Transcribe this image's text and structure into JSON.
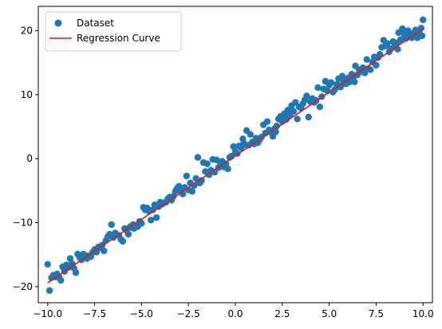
{
  "chart_data": {
    "type": "scatter",
    "title": "",
    "xlabel": "",
    "ylabel": "",
    "xlim": [
      -10.5,
      10.5
    ],
    "ylim": [
      -22.5,
      23.8
    ],
    "xticks": [
      -10.0,
      -7.5,
      -5.0,
      -2.5,
      0.0,
      2.5,
      5.0,
      7.5,
      10.0
    ],
    "xtick_labels": [
      "−10.0",
      "−7.5",
      "−5.0",
      "−2.5",
      "0.0",
      "2.5",
      "5.0",
      "7.5",
      "10.0"
    ],
    "yticks": [
      -20,
      -10,
      0,
      10,
      20
    ],
    "ytick_labels": [
      "−20",
      "−10",
      "0",
      "10",
      "20"
    ],
    "grid": false,
    "legend": {
      "placement": "top-left",
      "entries": [
        "Dataset",
        "Regression Curve"
      ]
    },
    "series": [
      {
        "name": "Dataset",
        "kind": "scatter",
        "color": "#1f77b4",
        "points": [
          [
            -10.0,
            -16.5
          ],
          [
            -9.9,
            -20.6
          ],
          [
            -9.8,
            -18.6
          ],
          [
            -9.7,
            -18.2
          ],
          [
            -9.6,
            -18.3
          ],
          [
            -9.5,
            -18.0
          ],
          [
            -9.4,
            -18.4
          ],
          [
            -9.3,
            -19.0
          ],
          [
            -9.2,
            -16.9
          ],
          [
            -9.1,
            -17.6
          ],
          [
            -9.0,
            -16.6
          ],
          [
            -8.9,
            -17.0
          ],
          [
            -8.8,
            -15.6
          ],
          [
            -8.7,
            -16.4
          ],
          [
            -8.6,
            -17.1
          ],
          [
            -8.5,
            -17.8
          ],
          [
            -8.4,
            -14.9
          ],
          [
            -8.3,
            -15.4
          ],
          [
            -8.2,
            -15.8
          ],
          [
            -8.1,
            -14.9
          ],
          [
            -8.0,
            -15.1
          ],
          [
            -7.9,
            -15.6
          ],
          [
            -7.8,
            -15.2
          ],
          [
            -7.7,
            -15.3
          ],
          [
            -7.6,
            -14.6
          ],
          [
            -7.5,
            -14.2
          ],
          [
            -7.4,
            -14.6
          ],
          [
            -7.3,
            -13.8
          ],
          [
            -7.2,
            -13.9
          ],
          [
            -7.1,
            -13.5
          ],
          [
            -7.0,
            -14.4
          ],
          [
            -6.9,
            -12.8
          ],
          [
            -6.8,
            -12.2
          ],
          [
            -6.7,
            -11.8
          ],
          [
            -6.6,
            -10.3
          ],
          [
            -6.5,
            -12.3
          ],
          [
            -6.4,
            -11.6
          ],
          [
            -6.3,
            -11.9
          ],
          [
            -6.2,
            -12.0
          ],
          [
            -6.1,
            -12.6
          ],
          [
            -6.0,
            -12.9
          ],
          [
            -5.9,
            -10.9
          ],
          [
            -5.8,
            -11.2
          ],
          [
            -5.7,
            -11.8
          ],
          [
            -5.6,
            -10.6
          ],
          [
            -5.5,
            -10.8
          ],
          [
            -5.4,
            -10.9
          ],
          [
            -5.3,
            -10.4
          ],
          [
            -5.2,
            -10.6
          ],
          [
            -5.1,
            -9.8
          ],
          [
            -5.0,
            -10.1
          ],
          [
            -4.9,
            -7.6
          ],
          [
            -4.8,
            -8.0
          ],
          [
            -4.7,
            -7.7
          ],
          [
            -4.6,
            -8.2
          ],
          [
            -4.5,
            -9.6
          ],
          [
            -4.4,
            -8.0
          ],
          [
            -4.3,
            -7.2
          ],
          [
            -4.2,
            -9.2
          ],
          [
            -4.1,
            -7.5
          ],
          [
            -4.0,
            -6.8
          ],
          [
            -3.9,
            -7.1
          ],
          [
            -3.8,
            -6.9
          ],
          [
            -3.7,
            -6.8
          ],
          [
            -3.6,
            -6.3
          ],
          [
            -3.5,
            -6.0
          ],
          [
            -3.4,
            -6.5
          ],
          [
            -3.3,
            -5.9
          ],
          [
            -3.2,
            -5.1
          ],
          [
            -3.1,
            -4.6
          ],
          [
            -3.0,
            -4.3
          ],
          [
            -2.9,
            -5.2
          ],
          [
            -2.8,
            -5.5
          ],
          [
            -2.7,
            -4.5
          ],
          [
            -2.6,
            -2.7
          ],
          [
            -2.5,
            -4.9
          ],
          [
            -2.4,
            -3.8
          ],
          [
            -2.3,
            -5.1
          ],
          [
            -2.2,
            -4.2
          ],
          [
            -2.1,
            -3.1
          ],
          [
            -2.0,
            0.2
          ],
          [
            -1.9,
            -3.8
          ],
          [
            -1.8,
            -3.4
          ],
          [
            -1.7,
            -0.6
          ],
          [
            -1.6,
            -2.0
          ],
          [
            -1.5,
            -0.8
          ],
          [
            -1.4,
            -2.5
          ],
          [
            -1.3,
            -1.8
          ],
          [
            -1.2,
            -0.1
          ],
          [
            -1.1,
            -2.1
          ],
          [
            -1.0,
            -0.2
          ],
          [
            -0.9,
            -1.4
          ],
          [
            -0.8,
            -1.0
          ],
          [
            -0.7,
            -0.4
          ],
          [
            -0.6,
            -1.3
          ],
          [
            -0.5,
            -0.8
          ],
          [
            -0.4,
            -1.6
          ],
          [
            -0.3,
            0.2
          ],
          [
            -0.2,
            0.4
          ],
          [
            -0.1,
            1.9
          ],
          [
            0.0,
            1.1
          ],
          [
            0.1,
            0.8
          ],
          [
            0.2,
            2.0
          ],
          [
            0.3,
            1.7
          ],
          [
            0.4,
            3.1
          ],
          [
            0.5,
            2.2
          ],
          [
            0.6,
            4.4
          ],
          [
            0.7,
            2.1
          ],
          [
            0.8,
            3.8
          ],
          [
            0.9,
            2.6
          ],
          [
            1.0,
            2.3
          ],
          [
            1.1,
            3.2
          ],
          [
            1.2,
            2.5
          ],
          [
            1.3,
            3.0
          ],
          [
            1.4,
            3.4
          ],
          [
            1.5,
            5.3
          ],
          [
            1.6,
            4.0
          ],
          [
            1.7,
            5.8
          ],
          [
            1.8,
            4.5
          ],
          [
            1.9,
            4.1
          ],
          [
            2.0,
            3.5
          ],
          [
            2.1,
            4.7
          ],
          [
            2.2,
            5.1
          ],
          [
            2.3,
            6.2
          ],
          [
            2.4,
            6.6
          ],
          [
            2.5,
            5.8
          ],
          [
            2.6,
            7.0
          ],
          [
            2.7,
            6.1
          ],
          [
            2.8,
            7.6
          ],
          [
            2.9,
            6.8
          ],
          [
            3.0,
            8.3
          ],
          [
            3.1,
            7.4
          ],
          [
            3.2,
            8.8
          ],
          [
            3.3,
            6.2
          ],
          [
            3.4,
            8.1
          ],
          [
            3.5,
            7.9
          ],
          [
            3.6,
            8.6
          ],
          [
            3.7,
            9.2
          ],
          [
            3.8,
            9.8
          ],
          [
            3.9,
            6.5
          ],
          [
            4.0,
            8.9
          ],
          [
            4.1,
            9.4
          ],
          [
            4.2,
            8.8
          ],
          [
            4.3,
            9.1
          ],
          [
            4.4,
            11.1
          ],
          [
            4.5,
            8.1
          ],
          [
            4.6,
            9.7
          ],
          [
            4.7,
            10.9
          ],
          [
            4.8,
            12.1
          ],
          [
            4.9,
            10.6
          ],
          [
            5.0,
            11.5
          ],
          [
            5.1,
            11.9
          ],
          [
            5.2,
            10.4
          ],
          [
            5.3,
            10.8
          ],
          [
            5.4,
            11.6
          ],
          [
            5.5,
            12.5
          ],
          [
            5.6,
            11.2
          ],
          [
            5.7,
            12.9
          ],
          [
            5.8,
            12.2
          ],
          [
            5.9,
            11.7
          ],
          [
            6.0,
            12.6
          ],
          [
            6.1,
            12.0
          ],
          [
            6.2,
            13.2
          ],
          [
            6.3,
            12.8
          ],
          [
            6.4,
            14.5
          ],
          [
            6.5,
            13.1
          ],
          [
            6.6,
            13.9
          ],
          [
            6.7,
            13.6
          ],
          [
            6.8,
            14.2
          ],
          [
            6.9,
            13.4
          ],
          [
            7.0,
            15.5
          ],
          [
            7.1,
            14.1
          ],
          [
            7.2,
            13.9
          ],
          [
            7.3,
            15.1
          ],
          [
            7.4,
            15.9
          ],
          [
            7.5,
            14.6
          ],
          [
            7.6,
            15.8
          ],
          [
            7.7,
            16.3
          ],
          [
            7.8,
            17.4
          ],
          [
            7.9,
            18.5
          ],
          [
            8.0,
            17.6
          ],
          [
            8.1,
            18.0
          ],
          [
            8.2,
            16.7
          ],
          [
            8.3,
            17.2
          ],
          [
            8.4,
            18.3
          ],
          [
            8.5,
            17.9
          ],
          [
            8.6,
            18.1
          ],
          [
            8.7,
            19.7
          ],
          [
            8.8,
            18.6
          ],
          [
            8.9,
            20.3
          ],
          [
            9.0,
            19.4
          ],
          [
            9.1,
            18.8
          ],
          [
            9.2,
            20.0
          ],
          [
            9.3,
            19.3
          ],
          [
            9.4,
            18.9
          ],
          [
            9.5,
            19.6
          ],
          [
            9.6,
            20.1
          ],
          [
            9.7,
            18.9
          ],
          [
            9.8,
            19.6
          ],
          [
            9.9,
            20.4
          ],
          [
            10.0,
            21.7
          ],
          [
            9.95,
            19.2
          ],
          [
            8.65,
            17.1
          ],
          [
            6.35,
            12.0
          ],
          [
            5.65,
            11.5
          ],
          [
            -9.55,
            -18.5
          ],
          [
            -5.45,
            -10.3
          ],
          [
            -2.95,
            -4.9
          ],
          [
            0.45,
            2.4
          ],
          [
            2.15,
            4.2
          ]
        ]
      },
      {
        "name": "Regression Curve",
        "kind": "line",
        "color": "#e31a1c",
        "points": [
          [
            -10.0,
            -19.4
          ],
          [
            10.0,
            20.3
          ]
        ]
      }
    ]
  }
}
